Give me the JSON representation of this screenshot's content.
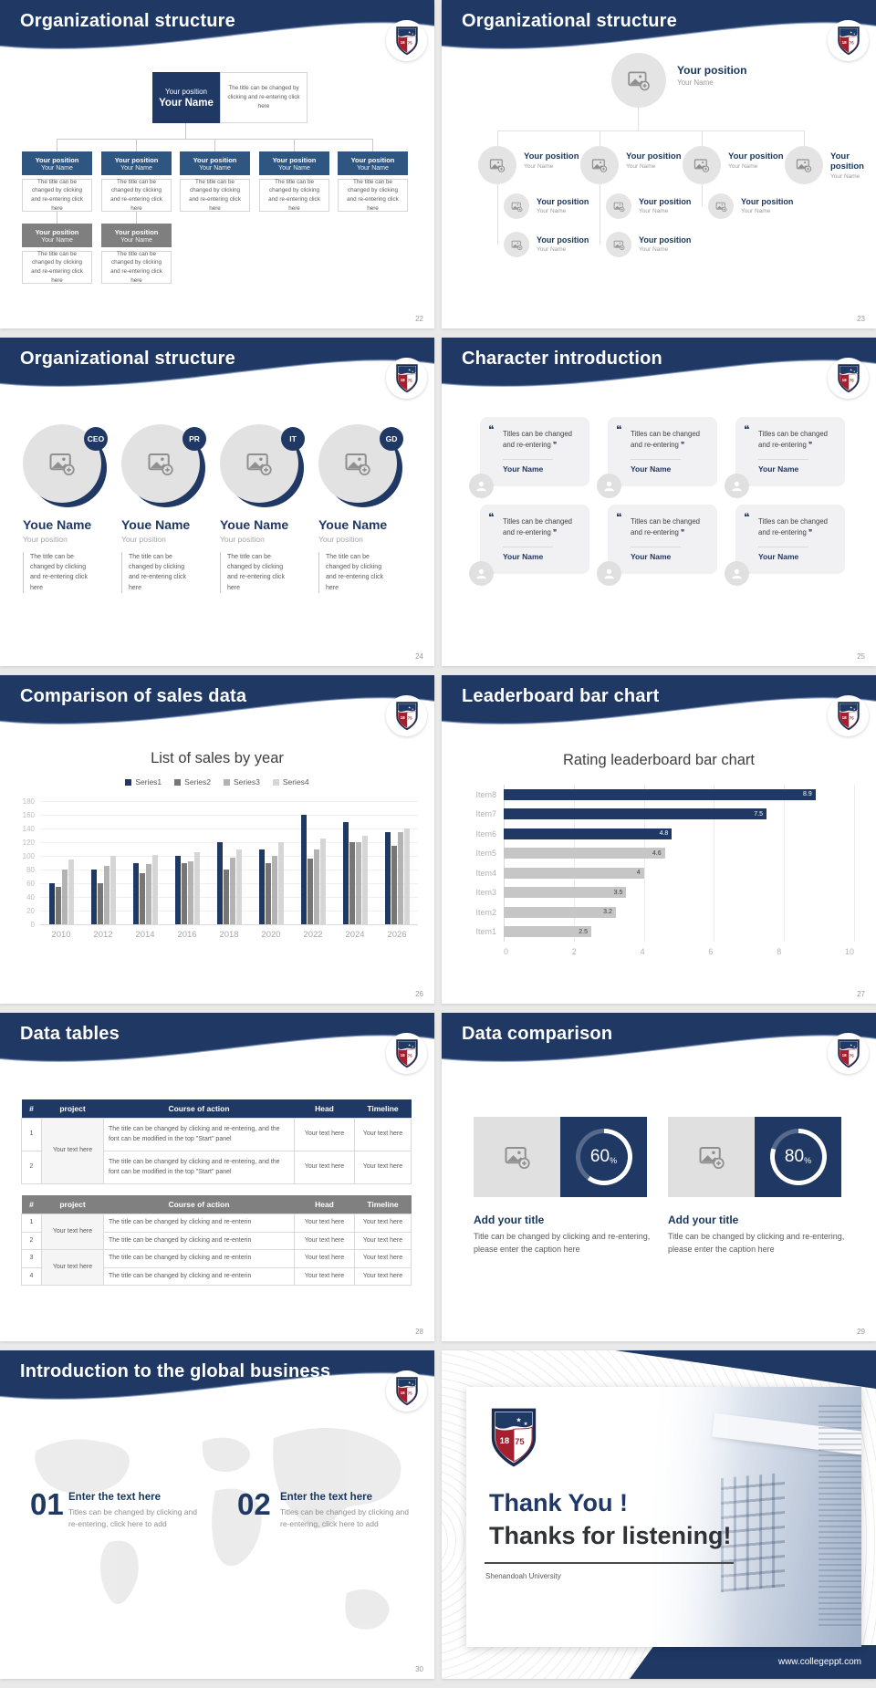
{
  "page": {
    "background": "#e9e9e9",
    "slide_background": "#ffffff"
  },
  "theme": {
    "navy": "#1f3864",
    "mid_blue": "#2f5581",
    "gray_box": "#7f7f7f",
    "light_circle": "#e4e4e4",
    "crest_year": "1875"
  },
  "icons": {
    "open_quote": "❝",
    "close_quote": "❞",
    "image_placeholder": "picture-with-plus",
    "person": "person-silhouette",
    "crest": "university-shield"
  },
  "chart_data": [
    {
      "slide": "26",
      "type": "bar",
      "title": "List of sales by year",
      "legend_position": "top",
      "categories": [
        "2010",
        "2012",
        "2014",
        "2016",
        "2018",
        "2020",
        "2022",
        "2024",
        "2026"
      ],
      "series": [
        {
          "name": "Series1",
          "color": "#1f3864",
          "values": [
            60,
            80,
            90,
            100,
            120,
            110,
            160,
            150,
            135
          ]
        },
        {
          "name": "Series2",
          "color": "#767676",
          "values": [
            55,
            60,
            75,
            90,
            80,
            90,
            96,
            120,
            115
          ]
        },
        {
          "name": "Series3",
          "color": "#b3b3b3",
          "values": [
            80,
            86,
            88,
            92,
            98,
            100,
            110,
            120,
            135
          ]
        },
        {
          "name": "Series4",
          "color": "#d6d6d6",
          "values": [
            95,
            100,
            102,
            105,
            110,
            120,
            126,
            130,
            140
          ]
        }
      ],
      "xlabel": "",
      "ylabel": "",
      "ylim": [
        0,
        180
      ],
      "ytick": 20,
      "grid": "horizontal"
    },
    {
      "slide": "27",
      "type": "bar",
      "orientation": "horizontal",
      "title": "Rating leaderboard bar chart",
      "categories_top_to_bottom": [
        "Item8",
        "Item7",
        "Item6",
        "Item5",
        "Item4",
        "Item3",
        "Item2",
        "Item1"
      ],
      "values_top_to_bottom": [
        8.9,
        7.5,
        4.8,
        4.6,
        4,
        3.5,
        3.2,
        2.5
      ],
      "value_labels": [
        "8.9",
        "7.5",
        "4.8",
        "4.6",
        "4",
        "3.5",
        "3.2",
        "2.5"
      ],
      "bar_colors_top_to_bottom": [
        "#1f3864",
        "#1f3864",
        "#1f3864",
        "#c6c6c6",
        "#c6c6c6",
        "#c6c6c6",
        "#c6c6c6",
        "#c6c6c6"
      ],
      "xlim": [
        0,
        10
      ],
      "xticks": [
        0,
        2,
        4,
        6,
        8,
        10
      ],
      "grid": "vertical"
    }
  ],
  "slides": {
    "s22": {
      "title": "Organizational structure",
      "page": "22",
      "root": {
        "position": "Your position",
        "name": "Your Name"
      },
      "root_note": "The title can be changed by clicking and re-entering click here",
      "children": [
        {
          "position": "Your position",
          "name": "Your Name",
          "note": "The title can be changed by clicking and re-entering click here"
        },
        {
          "position": "Your position",
          "name": "Your Name",
          "note": "The title can be changed by clicking and re-entering click here"
        },
        {
          "position": "Your position",
          "name": "Your Name",
          "note": "The title can be changed by clicking and re-entering click here"
        },
        {
          "position": "Your position",
          "name": "Your Name",
          "note": "The title can be changed by clicking and re-entering click here"
        },
        {
          "position": "Your position",
          "name": "Your Name",
          "note": "The title can be changed by clicking and re-entering click here"
        }
      ],
      "grays": [
        {
          "position": "Your position",
          "name": "Your Name",
          "note": "The title can be changed by clicking and re-entering click here"
        },
        {
          "position": "Your position",
          "name": "Your Name",
          "note": "The title can be changed by clicking and re-entering click here"
        }
      ]
    },
    "s23": {
      "title": "Organizational structure",
      "page": "23",
      "root": {
        "position": "Your position",
        "name": "Your Name"
      },
      "level1": [
        {
          "position": "Your position",
          "name": "Your Name"
        },
        {
          "position": "Your position",
          "name": "Your Name"
        },
        {
          "position": "Your position",
          "name": "Your Name"
        },
        {
          "position": "Your position",
          "name": "Your Name"
        }
      ],
      "level2": [
        {
          "position": "Your position",
          "name": "Your Name"
        },
        {
          "position": "Your position",
          "name": "Your Name"
        },
        {
          "position": "Your position",
          "name": "Your Name"
        }
      ],
      "level3": [
        {
          "position": "Your position",
          "name": "Your Name"
        },
        {
          "position": "Your position",
          "name": "Your Name"
        }
      ]
    },
    "s24": {
      "title": "Organizational structure",
      "page": "24",
      "members": [
        {
          "badge": "CEO",
          "name": "Youe Name",
          "position": "Your position",
          "note": "The title can be changed by clicking and re-entering click here"
        },
        {
          "badge": "PR",
          "name": "Youe Name",
          "position": "Your position",
          "note": "The title can be changed by clicking and re-entering click here"
        },
        {
          "badge": "IT",
          "name": "Youe Name",
          "position": "Your position",
          "note": "The title can be changed by clicking and re-entering click here"
        },
        {
          "badge": "GD",
          "name": "Youe Name",
          "position": "Your position",
          "note": "The title can be changed by clicking and re-entering click here"
        }
      ]
    },
    "s25": {
      "title": "Character introduction",
      "page": "25",
      "cards": [
        {
          "quote": "Titles can be changed and re-entering",
          "name": "Your Name"
        },
        {
          "quote": "Titles can be changed and re-entering",
          "name": "Your Name"
        },
        {
          "quote": "Titles can be changed and re-entering",
          "name": "Your Name"
        },
        {
          "quote": "Titles can be changed and re-entering",
          "name": "Your Name"
        },
        {
          "quote": "Titles can be changed and re-entering",
          "name": "Your Name"
        },
        {
          "quote": "Titles can be changed and re-entering",
          "name": "Your Name"
        }
      ]
    },
    "s26": {
      "title": "Comparison of sales data",
      "page": "26"
    },
    "s27": {
      "title": "Leaderboard bar chart",
      "page": "27"
    },
    "s28": {
      "title": "Data tables",
      "page": "28",
      "tables": [
        {
          "style": "navy",
          "columns": [
            "#",
            "project",
            "Course of action",
            "Head",
            "Timeline"
          ],
          "project_groups": [
            {
              "label": "Your text here",
              "span": 2
            }
          ],
          "rows": [
            {
              "num": "1",
              "course": "The title can be changed by clicking and re-entering, and the font can be modified in the top \"Start\" panel",
              "head": "Your text here",
              "timeline": "Your text here"
            },
            {
              "num": "2",
              "course": "The title can be changed by clicking and re-entering, and the font can be modified in the top \"Start\" panel",
              "head": "Your text here",
              "timeline": "Your text here"
            }
          ]
        },
        {
          "style": "gray",
          "columns": [
            "#",
            "project",
            "Course of action",
            "Head",
            "Timeline"
          ],
          "project_groups": [
            {
              "label": "Your text here",
              "span": 2
            },
            {
              "label": "Your text here",
              "span": 2
            }
          ],
          "rows": [
            {
              "num": "1",
              "course": "The title can be changed by clicking and re-enterin",
              "head": "Your text here",
              "timeline": "Your text here"
            },
            {
              "num": "2",
              "course": "The title can be changed by clicking and re-enterin",
              "head": "Your text here",
              "timeline": "Your text here"
            },
            {
              "num": "3",
              "course": "The title can be changed by clicking and re-enterin",
              "head": "Your text here",
              "timeline": "Your text here"
            },
            {
              "num": "4",
              "course": "The title can be changed by clicking and re-enterin",
              "head": "Your text here",
              "timeline": "Your text here"
            }
          ]
        }
      ]
    },
    "s29": {
      "title": "Data comparison",
      "page": "29",
      "items": [
        {
          "percent": 60,
          "unit": "%",
          "title": "Add your title",
          "caption": "Title can be changed by clicking and re-entering, please enter the caption here"
        },
        {
          "percent": 80,
          "unit": "%",
          "title": "Add your title",
          "caption": "Title can be changed by clicking and re-entering, please enter the caption here"
        }
      ]
    },
    "s30": {
      "title": "Introduction to the global business",
      "page": "30",
      "items": [
        {
          "num": "01",
          "heading": "Enter the text here",
          "caption": "Titles can be changed by clicking and re-entering, click here to add"
        },
        {
          "num": "02",
          "heading": "Enter the text here",
          "caption": "Titles can be changed by clicking and re-entering, click here to add"
        }
      ]
    },
    "s31": {
      "line1": "Thank You !",
      "line2": "Thanks for listening!",
      "subtitle": "Shenandoah University",
      "url": "www.collegeppt.com",
      "crest_year": "1875"
    }
  }
}
